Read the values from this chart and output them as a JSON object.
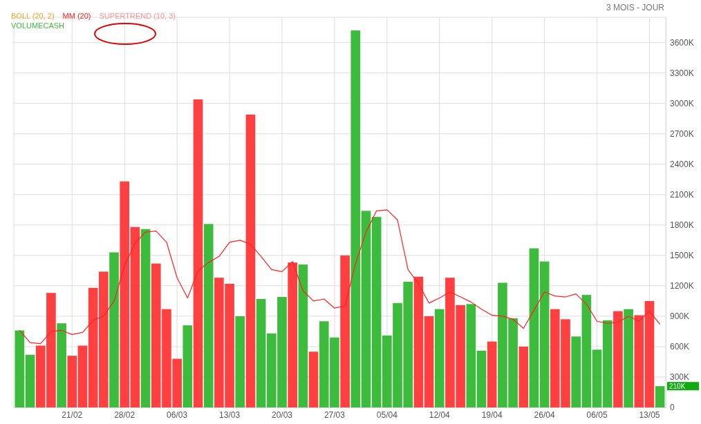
{
  "chart_data": {
    "type": "bar",
    "title": "3 MOIS - JOUR",
    "categories": [
      null,
      null,
      null,
      null,
      null,
      "21/02",
      null,
      null,
      null,
      null,
      "28/02",
      null,
      null,
      null,
      null,
      "06/03",
      null,
      null,
      null,
      null,
      "13/03",
      null,
      null,
      null,
      null,
      "20/03",
      null,
      null,
      null,
      null,
      "27/03",
      null,
      null,
      null,
      null,
      "05/04",
      null,
      null,
      null,
      null,
      "12/04",
      null,
      null,
      null,
      null,
      "19/04",
      null,
      null,
      null,
      null,
      "26/04",
      null,
      null,
      null,
      null,
      "06/05",
      null,
      null,
      null,
      null,
      "13/05",
      null
    ],
    "series": [
      {
        "name": "VOLUMECASH",
        "color": "#3dbb3d",
        "colors": [
          "#3dbb3d",
          "#3dbb3d",
          "#ff4040",
          "#ff4040",
          "#3dbb3d",
          "#ff4040",
          "#ff4040",
          "#ff4040",
          "#ff4040",
          "#3dbb3d",
          "#ff4040",
          "#ff4040",
          "#3dbb3d",
          "#ff4040",
          "#ff4040",
          "#ff4040",
          "#3dbb3d",
          "#ff4040",
          "#3dbb3d",
          "#ff4040",
          "#ff4040",
          "#3dbb3d",
          "#ff4040",
          "#3dbb3d",
          "#3dbb3d",
          "#3dbb3d",
          "#ff4040",
          "#3dbb3d",
          "#ff4040",
          "#3dbb3d",
          "#3dbb3d",
          "#ff4040",
          "#3dbb3d",
          "#3dbb3d",
          "#3dbb3d",
          "#3dbb3d",
          "#3dbb3d",
          "#3dbb3d",
          "#ff4040",
          "#ff4040",
          "#3dbb3d",
          "#ff4040",
          "#ff4040",
          "#3dbb3d",
          "#3dbb3d",
          "#ff4040",
          "#3dbb3d",
          "#3dbb3d",
          "#ff4040",
          "#3dbb3d",
          "#3dbb3d",
          "#ff4040",
          "#ff4040",
          "#3dbb3d",
          "#3dbb3d",
          "#3dbb3d",
          "#3dbb3d",
          "#ff4040",
          "#3dbb3d",
          "#ff4040",
          "#ff4040",
          "#3dbb3d"
        ],
        "values": [
          760,
          520,
          610,
          1130,
          830,
          510,
          610,
          1180,
          1340,
          1530,
          2230,
          1780,
          1760,
          1420,
          970,
          480,
          810,
          3040,
          1810,
          1280,
          1220,
          900,
          2890,
          1070,
          730,
          1090,
          1430,
          1410,
          550,
          850,
          690,
          1500,
          3720,
          1940,
          1880,
          710,
          1030,
          1240,
          1290,
          900,
          970,
          1280,
          1010,
          1020,
          560,
          650,
          1230,
          880,
          600,
          1570,
          1440,
          970,
          870,
          700,
          1110,
          570,
          860,
          950,
          970,
          910,
          1050,
          210
        ]
      },
      {
        "name": "BOLL (20, 2)",
        "type": "line",
        "color": "#f5a623",
        "values": [
          null,
          null,
          null,
          null,
          null,
          null,
          null,
          null,
          null,
          null,
          null,
          null,
          null,
          null,
          null,
          null,
          null,
          null,
          null,
          null,
          null,
          null,
          null,
          null,
          null,
          null,
          null,
          null,
          null,
          null,
          null,
          null,
          null,
          null,
          null,
          null,
          null,
          null,
          null,
          null,
          null,
          null,
          null,
          null,
          null,
          null,
          null,
          null,
          null,
          null,
          null,
          null,
          null,
          null,
          null,
          null,
          null,
          null,
          null,
          null,
          null,
          null
        ]
      },
      {
        "name": "MM (20)",
        "type": "line",
        "color": "#ff2020",
        "values": [
          760,
          640,
          630,
          750,
          760,
          720,
          740,
          860,
          900,
          1050,
          1400,
          1620,
          1730,
          1740,
          1630,
          1280,
          1080,
          1350,
          1430,
          1490,
          1630,
          1650,
          1610,
          1490,
          1360,
          1340,
          1440,
          1150,
          1050,
          1070,
          980,
          1000,
          1420,
          1730,
          1940,
          1950,
          1850,
          1360,
          1220,
          1030,
          1080,
          1140,
          1090,
          1040,
          970,
          910,
          900,
          870,
          780,
          960,
          1140,
          1100,
          1090,
          1120,
          1020,
          850,
          830,
          840,
          900,
          850,
          950,
          820
        ]
      },
      {
        "name": "SUPERTREND (10, 3)",
        "type": "line",
        "color": "#ff9090",
        "values": [
          null,
          null,
          null,
          null,
          null,
          null,
          null,
          null,
          null,
          null,
          null,
          null,
          null,
          null,
          null,
          null,
          null,
          null,
          null,
          null,
          null,
          null,
          null,
          null,
          null,
          null,
          null,
          null,
          null,
          null,
          null,
          null,
          null,
          null,
          null,
          null,
          null,
          null,
          null,
          null,
          null,
          null,
          null,
          null,
          null,
          null,
          null,
          null,
          null,
          null,
          null,
          null,
          null,
          null,
          null,
          null,
          null,
          null,
          null,
          null,
          null,
          null
        ]
      }
    ],
    "ylim": [
      0,
      3850
    ],
    "yticks": [
      0,
      {
        "value": 300,
        "label": "300K"
      },
      {
        "value": 600,
        "label": "600K"
      },
      {
        "value": 900,
        "label": "900K"
      },
      {
        "value": 1200,
        "label": "1200K"
      },
      {
        "value": 1500,
        "label": "1500K"
      },
      {
        "value": 1800,
        "label": "1800K"
      },
      {
        "value": 2100,
        "label": "2100K"
      },
      {
        "value": 2400,
        "label": "2400K"
      },
      {
        "value": 2700,
        "label": "2700K"
      },
      {
        "value": 3000,
        "label": "3000K"
      },
      {
        "value": 3300,
        "label": "3300K"
      },
      {
        "value": 3600,
        "label": "3600K"
      }
    ],
    "annotations": [
      "210K"
    ],
    "grid": true,
    "legend": "top left"
  }
}
